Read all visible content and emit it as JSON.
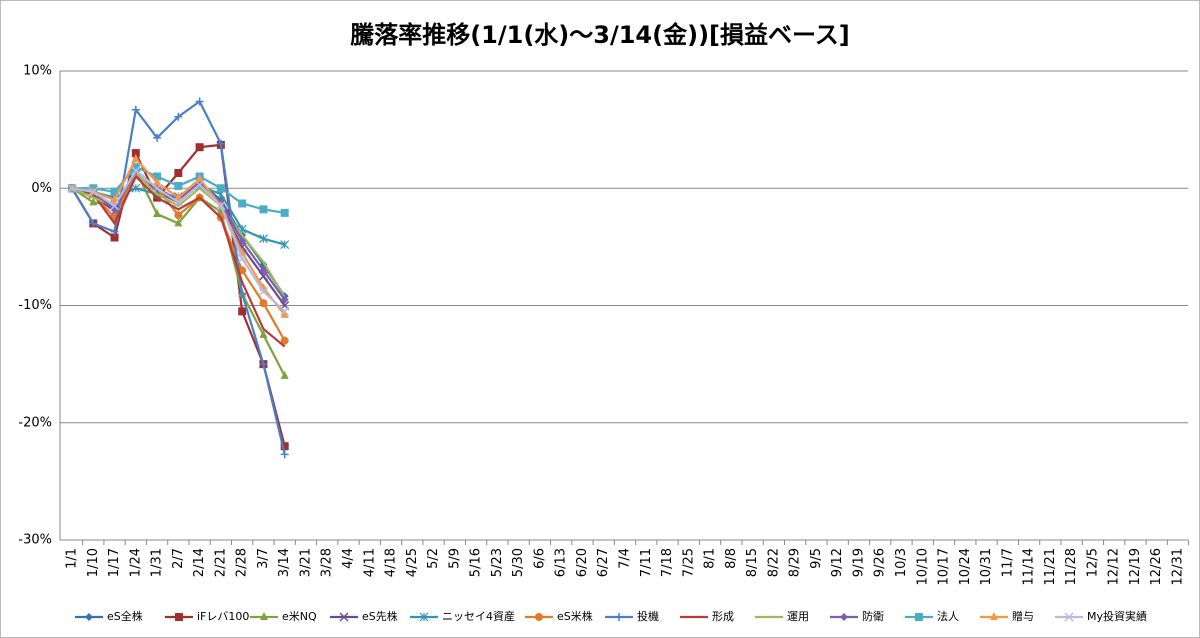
{
  "chart_data": {
    "type": "line",
    "title": "騰落率推移(1/1(水)～3/14(金))[損益ベース]",
    "categories": [
      "1/1",
      "1/10",
      "1/17",
      "1/24",
      "1/31",
      "2/7",
      "2/14",
      "2/21",
      "2/28",
      "3/7",
      "3/14",
      "3/21",
      "3/28",
      "4/4",
      "4/11",
      "4/18",
      "4/25",
      "5/2",
      "5/9",
      "5/16",
      "5/23",
      "5/30",
      "6/6",
      "6/13",
      "6/20",
      "6/27",
      "7/4",
      "7/11",
      "7/18",
      "7/25",
      "8/1",
      "8/8",
      "8/15",
      "8/22",
      "8/29",
      "9/5",
      "9/12",
      "9/19",
      "9/26",
      "10/3",
      "10/10",
      "10/17",
      "10/24",
      "10/31",
      "11/7",
      "11/14",
      "11/21",
      "11/28",
      "12/5",
      "12/12",
      "12/19",
      "12/26",
      "12/31"
    ],
    "ylim": [
      -30,
      10
    ],
    "yticks": [
      {
        "value": -30,
        "label": "-30%"
      },
      {
        "value": -20,
        "label": "-20%"
      },
      {
        "value": -10,
        "label": "-10%"
      },
      {
        "value": 0,
        "label": "0%"
      },
      {
        "value": 10,
        "label": "10%"
      }
    ],
    "grid": true,
    "legend": "bottom",
    "series": [
      {
        "name": "eS全株",
        "color": "#3a6eb5",
        "marker": "diamond",
        "values": [
          0,
          -0.5,
          -1.5,
          1.5,
          0,
          -1,
          0.5,
          -1,
          -4,
          -6.5,
          -9.2,
          null,
          null,
          null,
          null,
          null,
          null,
          null,
          null,
          null,
          null,
          null,
          null,
          null,
          null,
          null,
          null,
          null,
          null,
          null,
          null,
          null,
          null,
          null,
          null,
          null,
          null,
          null,
          null,
          null,
          null,
          null,
          null,
          null,
          null,
          null,
          null,
          null,
          null,
          null,
          null,
          null,
          null
        ]
      },
      {
        "name": "iFレバ100",
        "color": "#a03030",
        "marker": "square",
        "values": [
          0,
          -3,
          -4.2,
          3,
          -0.8,
          1.3,
          3.5,
          3.7,
          -10.5,
          -15,
          -22,
          null,
          null,
          null,
          null,
          null,
          null,
          null,
          null,
          null,
          null,
          null,
          null,
          null,
          null,
          null,
          null,
          null,
          null,
          null,
          null,
          null,
          null,
          null,
          null,
          null,
          null,
          null,
          null,
          null,
          null,
          null,
          null,
          null,
          null,
          null,
          null,
          null,
          null,
          null,
          null,
          null,
          null
        ]
      },
      {
        "name": "e米NQ",
        "color": "#7fa33c",
        "marker": "triangle",
        "values": [
          0,
          -1.2,
          -1.5,
          1.5,
          -2.2,
          -3,
          -0.8,
          -2,
          -9,
          -12.5,
          -16,
          null,
          null,
          null,
          null,
          null,
          null,
          null,
          null,
          null,
          null,
          null,
          null,
          null,
          null,
          null,
          null,
          null,
          null,
          null,
          null,
          null,
          null,
          null,
          null,
          null,
          null,
          null,
          null,
          null,
          null,
          null,
          null,
          null,
          null,
          null,
          null,
          null,
          null,
          null,
          null,
          null,
          null
        ]
      },
      {
        "name": "eS先株",
        "color": "#6a4c93",
        "marker": "x",
        "values": [
          0,
          -0.5,
          -2,
          1.2,
          -0.3,
          -1.2,
          0.3,
          -1.5,
          -5,
          -7.5,
          -10,
          null,
          null,
          null,
          null,
          null,
          null,
          null,
          null,
          null,
          null,
          null,
          null,
          null,
          null,
          null,
          null,
          null,
          null,
          null,
          null,
          null,
          null,
          null,
          null,
          null,
          null,
          null,
          null,
          null,
          null,
          null,
          null,
          null,
          null,
          null,
          null,
          null,
          null,
          null,
          null,
          null,
          null
        ]
      },
      {
        "name": "ニッセイ4資産",
        "color": "#3396b0",
        "marker": "star",
        "values": [
          0,
          -0.3,
          -0.8,
          0,
          -0.5,
          -0.7,
          0.2,
          -0.5,
          -3.5,
          -4.3,
          -4.8,
          null,
          null,
          null,
          null,
          null,
          null,
          null,
          null,
          null,
          null,
          null,
          null,
          null,
          null,
          null,
          null,
          null,
          null,
          null,
          null,
          null,
          null,
          null,
          null,
          null,
          null,
          null,
          null,
          null,
          null,
          null,
          null,
          null,
          null,
          null,
          null,
          null,
          null,
          null,
          null,
          null,
          null
        ]
      },
      {
        "name": "eS米株",
        "color": "#e07b29",
        "marker": "circle",
        "values": [
          0,
          -0.5,
          -2.5,
          1.5,
          0,
          -2.3,
          -0.8,
          -2.5,
          -7,
          -9.8,
          -13,
          null,
          null,
          null,
          null,
          null,
          null,
          null,
          null,
          null,
          null,
          null,
          null,
          null,
          null,
          null,
          null,
          null,
          null,
          null,
          null,
          null,
          null,
          null,
          null,
          null,
          null,
          null,
          null,
          null,
          null,
          null,
          null,
          null,
          null,
          null,
          null,
          null,
          null,
          null,
          null,
          null,
          null
        ]
      },
      {
        "name": "投機",
        "color": "#4a7fcb",
        "marker": "plus",
        "values": [
          0,
          -3,
          -3.7,
          6.7,
          4.3,
          6.1,
          7.4,
          3.8,
          -9,
          -15,
          -22.7,
          null,
          null,
          null,
          null,
          null,
          null,
          null,
          null,
          null,
          null,
          null,
          null,
          null,
          null,
          null,
          null,
          null,
          null,
          null,
          null,
          null,
          null,
          null,
          null,
          null,
          null,
          null,
          null,
          null,
          null,
          null,
          null,
          null,
          null,
          null,
          null,
          null,
          null,
          null,
          null,
          null,
          null
        ]
      },
      {
        "name": "形成",
        "color": "#b83b3b",
        "marker": "none",
        "values": [
          0,
          -0.5,
          -3,
          1,
          -0.8,
          -1.8,
          -0.8,
          -2.5,
          -8,
          -12,
          -13.5,
          null,
          null,
          null,
          null,
          null,
          null,
          null,
          null,
          null,
          null,
          null,
          null,
          null,
          null,
          null,
          null,
          null,
          null,
          null,
          null,
          null,
          null,
          null,
          null,
          null,
          null,
          null,
          null,
          null,
          null,
          null,
          null,
          null,
          null,
          null,
          null,
          null,
          null,
          null,
          null,
          null,
          null
        ]
      },
      {
        "name": "運用",
        "color": "#9bbb59",
        "marker": "none",
        "values": [
          0,
          -0.8,
          -1.5,
          1.3,
          -0.5,
          -1.5,
          0,
          -1.5,
          -4,
          -6.3,
          -9.3,
          null,
          null,
          null,
          null,
          null,
          null,
          null,
          null,
          null,
          null,
          null,
          null,
          null,
          null,
          null,
          null,
          null,
          null,
          null,
          null,
          null,
          null,
          null,
          null,
          null,
          null,
          null,
          null,
          null,
          null,
          null,
          null,
          null,
          null,
          null,
          null,
          null,
          null,
          null,
          null,
          null,
          null
        ]
      },
      {
        "name": "防衛",
        "color": "#7e5ea8",
        "marker": "diamond",
        "values": [
          0,
          -0.3,
          -1.8,
          1.5,
          0,
          -1,
          0.5,
          -1.2,
          -4.5,
          -7,
          -9.5,
          null,
          null,
          null,
          null,
          null,
          null,
          null,
          null,
          null,
          null,
          null,
          null,
          null,
          null,
          null,
          null,
          null,
          null,
          null,
          null,
          null,
          null,
          null,
          null,
          null,
          null,
          null,
          null,
          null,
          null,
          null,
          null,
          null,
          null,
          null,
          null,
          null,
          null,
          null,
          null,
          null,
          null
        ]
      },
      {
        "name": "法人",
        "color": "#4bacc6",
        "marker": "square",
        "values": [
          0,
          0,
          -0.3,
          1.8,
          1,
          0.2,
          1,
          0,
          -1.3,
          -1.8,
          -2.1,
          null,
          null,
          null,
          null,
          null,
          null,
          null,
          null,
          null,
          null,
          null,
          null,
          null,
          null,
          null,
          null,
          null,
          null,
          null,
          null,
          null,
          null,
          null,
          null,
          null,
          null,
          null,
          null,
          null,
          null,
          null,
          null,
          null,
          null,
          null,
          null,
          null,
          null,
          null,
          null,
          null,
          null
        ]
      },
      {
        "name": "贈与",
        "color": "#f79646",
        "marker": "triangle",
        "values": [
          0,
          -0.3,
          -1,
          2.5,
          0.5,
          -0.8,
          0.8,
          -1.5,
          -5.5,
          -8.5,
          -10.8,
          null,
          null,
          null,
          null,
          null,
          null,
          null,
          null,
          null,
          null,
          null,
          null,
          null,
          null,
          null,
          null,
          null,
          null,
          null,
          null,
          null,
          null,
          null,
          null,
          null,
          null,
          null,
          null,
          null,
          null,
          null,
          null,
          null,
          null,
          null,
          null,
          null,
          null,
          null,
          null,
          null,
          null
        ]
      },
      {
        "name": "My投資実績",
        "color": "#b9b9e3",
        "marker": "x",
        "values": [
          0,
          -0.3,
          -1.5,
          1.5,
          0,
          -1.2,
          0.3,
          -1.5,
          -6,
          -8.8,
          -10.5,
          null,
          null,
          null,
          null,
          null,
          null,
          null,
          null,
          null,
          null,
          null,
          null,
          null,
          null,
          null,
          null,
          null,
          null,
          null,
          null,
          null,
          null,
          null,
          null,
          null,
          null,
          null,
          null,
          null,
          null,
          null,
          null,
          null,
          null,
          null,
          null,
          null,
          null,
          null,
          null,
          null,
          null
        ]
      }
    ]
  }
}
